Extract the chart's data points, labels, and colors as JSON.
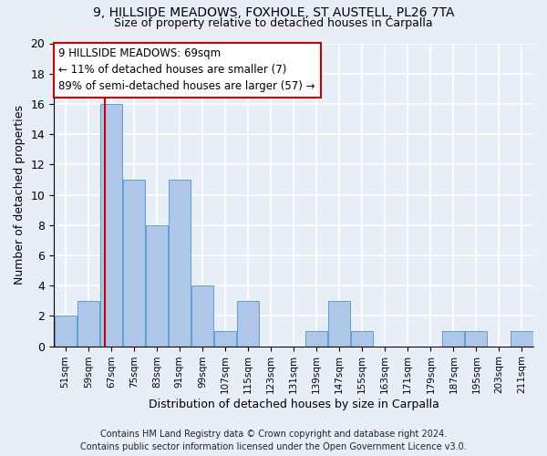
{
  "title1": "9, HILLSIDE MEADOWS, FOXHOLE, ST AUSTELL, PL26 7TA",
  "title2": "Size of property relative to detached houses in Carpalla",
  "xlabel": "Distribution of detached houses by size in Carpalla",
  "ylabel": "Number of detached properties",
  "bar_edges": [
    51,
    59,
    67,
    75,
    83,
    91,
    99,
    107,
    115,
    123,
    131,
    139,
    147,
    155,
    163,
    171,
    179,
    187,
    195,
    203,
    211
  ],
  "bar_counts": [
    2,
    3,
    16,
    11,
    8,
    11,
    4,
    1,
    3,
    0,
    0,
    1,
    3,
    1,
    0,
    0,
    0,
    1,
    1,
    0,
    1
  ],
  "bar_color": "#aec6e8",
  "bar_edge_color": "#5a9ed6",
  "vline_x": 69,
  "vline_color": "#cc0000",
  "annotation_line1": "9 HILLSIDE MEADOWS: 69sqm",
  "annotation_line2": "← 11% of detached houses are smaller (7)",
  "annotation_line3": "89% of semi-detached houses are larger (57) →",
  "annotation_box_color": "#ffffff",
  "annotation_box_edge": "#cc0000",
  "ylim": [
    0,
    20
  ],
  "yticks": [
    0,
    2,
    4,
    6,
    8,
    10,
    12,
    14,
    16,
    18,
    20
  ],
  "footer1": "Contains HM Land Registry data © Crown copyright and database right 2024.",
  "footer2": "Contains public sector information licensed under the Open Government Licence v3.0.",
  "background_color": "#e8eef5",
  "grid_color": "#ffffff",
  "tick_label_fontsize": 7.5,
  "title1_fontsize": 10,
  "title2_fontsize": 9,
  "ylabel_fontsize": 9,
  "xlabel_fontsize": 9,
  "annotation_fontsize": 8.5,
  "footer_fontsize": 7
}
